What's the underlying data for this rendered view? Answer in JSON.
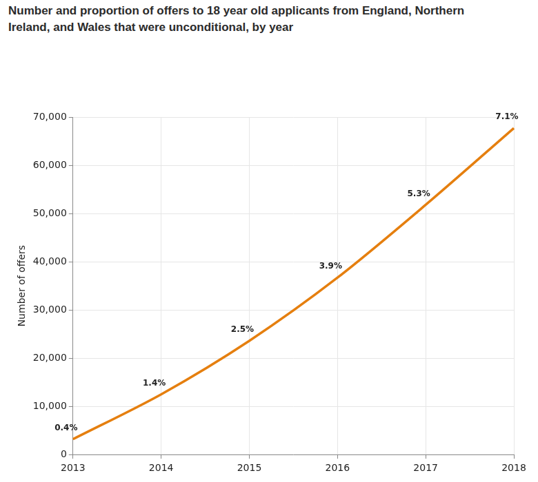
{
  "chart_data": {
    "type": "line",
    "title": "Number and proportion of offers to 18 year old applicants from England, Northern Ireland, and Wales that were unconditional, by year",
    "y_label": "Number of offers",
    "categories": [
      "2013",
      "2014",
      "2015",
      "2016",
      "2017",
      "2018"
    ],
    "values": [
      3200,
      12500,
      23600,
      36700,
      51800,
      67700
    ],
    "annotations": [
      {
        "category": "2013",
        "text": "0.4%"
      },
      {
        "category": "2014",
        "text": "1.4%"
      },
      {
        "category": "2015",
        "text": "2.5%"
      },
      {
        "category": "2016",
        "text": "3.9%"
      },
      {
        "category": "2017",
        "text": "5.3%"
      },
      {
        "category": "2018",
        "text": "7.1%"
      }
    ],
    "color": "#e57f0f",
    "ylim": [
      0,
      70000
    ],
    "yticks": [
      0,
      {
        "value": 10000,
        "label": "10,000"
      },
      {
        "value": 20000,
        "label": "20,000"
      },
      {
        "value": 30000,
        "label": "30,000"
      },
      {
        "value": 40000,
        "label": "40,000"
      },
      {
        "value": 50000,
        "label": "50,000"
      },
      {
        "value": 60000,
        "label": "60,000"
      },
      {
        "value": 70000,
        "label": "70,000"
      }
    ],
    "grid": true
  }
}
